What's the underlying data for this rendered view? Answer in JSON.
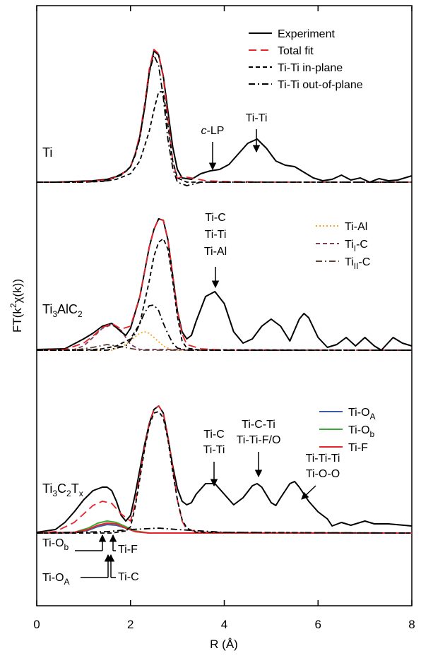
{
  "chart_data": {
    "type": "line",
    "xlabel": "R (Å)",
    "ylabel": [
      "FT(k",
      "2",
      "χ(k))"
    ],
    "xlim": [
      0,
      8
    ],
    "xticks": [
      0,
      2,
      4,
      6,
      8
    ],
    "ylim": [
      0,
      850
    ],
    "panels": [
      {
        "label": "Ti",
        "series": [
          {
            "name": "Experiment",
            "color": "#000000",
            "style": "solid",
            "x": [
              0,
              0.4,
              0.8,
              1.2,
              1.5,
              1.7,
              1.9,
              2.0,
              2.1,
              2.2,
              2.3,
              2.4,
              2.5,
              2.6,
              2.7,
              2.8,
              2.9,
              3.0,
              3.1,
              3.3,
              3.5,
              3.7,
              3.9,
              4.1,
              4.3,
              4.5,
              4.7,
              4.9,
              5.1,
              5.3,
              5.5,
              5.7,
              5.9,
              6.1,
              6.3,
              6.5,
              6.7,
              6.9,
              7.1,
              7.3,
              7.5,
              7.7,
              8.0
            ],
            "values": [
              600,
              600,
              601,
              602,
              604,
              608,
              615,
              622,
              640,
              665,
              705,
              755,
              786,
              780,
              750,
              700,
              650,
              618,
              606,
              604,
              612,
              616,
              618,
              625,
              640,
              655,
              661,
              648,
              630,
              624,
              622,
              614,
              606,
              602,
              604,
              610,
              603,
              606,
              600,
              605,
              602,
              603,
              609
            ]
          },
          {
            "name": "Total fit",
            "color": "#e8242b",
            "style": "longdash",
            "x": [
              0,
              0.5,
              1.0,
              1.5,
              1.8,
              2.0,
              2.1,
              2.2,
              2.3,
              2.4,
              2.5,
              2.6,
              2.7,
              2.8,
              2.9,
              3.0,
              3.1,
              3.3,
              3.6,
              4.0,
              5.0,
              6.0,
              7.0,
              8.0
            ],
            "values": [
              600,
              600,
              601,
              603,
              610,
              622,
              640,
              668,
              710,
              760,
              788,
              782,
              748,
              690,
              630,
              605,
              608,
              606,
              602,
              601,
              600,
              600,
              600,
              600
            ]
          },
          {
            "name": "Ti-Ti in-plane",
            "color": "#000000",
            "style": "dashed",
            "x": [
              0,
              1.0,
              1.4,
              1.7,
              2.0,
              2.2,
              2.4,
              2.5,
              2.6,
              2.7,
              2.8,
              2.9,
              3.0,
              3.2,
              4.0,
              8.0
            ],
            "values": [
              600,
              600,
              601,
              604,
              612,
              630,
              672,
              702,
              728,
              728,
              680,
              630,
              606,
              600,
              600,
              600
            ]
          },
          {
            "name": "Ti-Ti out-of-plane",
            "color": "#000000",
            "style": "dashdot",
            "x": [
              0,
              1.0,
              1.5,
              1.8,
              2.0,
              2.1,
              2.2,
              2.3,
              2.4,
              2.5,
              2.6,
              2.7,
              2.8,
              2.9,
              3.0,
              3.2,
              3.5,
              4.0,
              8.0
            ],
            "values": [
              600,
              600,
              602,
              610,
              622,
              638,
              662,
              705,
              755,
              780,
              765,
              720,
              660,
              620,
              600,
              595,
              600,
              600,
              600
            ]
          }
        ],
        "annotations": [
          [
            [
              "c-LP"
            ]
          ],
          [
            [
              "Ti-Ti"
            ]
          ]
        ]
      },
      {
        "label": [
          "Ti",
          "3",
          "AlC",
          "2"
        ],
        "series": [
          {
            "name": "Ti-Al",
            "color": "#f5a623",
            "style": "dotted",
            "x": [
              0,
              1.6,
              1.9,
              2.1,
              2.2,
              2.3,
              2.4,
              2.5,
              2.7,
              2.9,
              8.0
            ],
            "values": [
              362,
              362,
              370,
              381,
              386,
              388,
              386,
              380,
              368,
              362,
              362
            ]
          },
          {
            "name": [
              "Ti",
              "I",
              "-C"
            ],
            "color": "#7a3f5c",
            "style": "dashed",
            "x": [
              0,
              0.8,
              1.0,
              1.2,
              1.4,
              1.6,
              1.8,
              1.9,
              2.0,
              2.2,
              8.0
            ],
            "values": [
              362,
              363,
              368,
              380,
              393,
              398,
              390,
              380,
              370,
              363,
              362
            ]
          },
          {
            "name": [
              "Ti",
              "II",
              "-C"
            ],
            "color": "#5c4033",
            "style": "dashdot",
            "x": [
              0,
              0.8,
              1.2,
              1.5,
              1.8,
              2.2,
              8.0
            ],
            "values": [
              362,
              362,
              366,
              370,
              367,
              362,
              362
            ]
          },
          {
            "color": "#000000",
            "style": "solid",
            "x": [
              0,
              0.6,
              1.0,
              1.2,
              1.4,
              1.6,
              1.8,
              1.9,
              2.0,
              2.2,
              2.4,
              2.5,
              2.6,
              2.7,
              2.8,
              2.9,
              3.0,
              3.1,
              3.2,
              3.3,
              3.4,
              3.6,
              3.8,
              4.0,
              4.2,
              4.4,
              4.6,
              4.8,
              5.0,
              5.2,
              5.4,
              5.6,
              5.7,
              5.8,
              6.0,
              6.2,
              6.4,
              6.6,
              6.8,
              7.0,
              7.2,
              7.35,
              7.6,
              7.8,
              8.0
            ],
            "values": [
              363,
              364,
              378,
              386,
              396,
              400,
              388,
              383,
              393,
              438,
              508,
              533,
              548,
              546,
              518,
              468,
              418,
              388,
              378,
              383,
              403,
              438,
              445,
              428,
              388,
              372,
              378,
              396,
              406,
              396,
              375,
              406,
              414,
              408,
              380,
              366,
              370,
              380,
              368,
              380,
              368,
              362,
              380,
              372,
              368
            ]
          },
          {
            "color": "#e8242b",
            "style": "longdash",
            "x": [
              0,
              0.6,
              1.0,
              1.2,
              1.4,
              1.6,
              1.8,
              2.0,
              2.2,
              2.4,
              2.5,
              2.6,
              2.7,
              2.8,
              2.9,
              3.0,
              3.1,
              3.2,
              3.5,
              4.0,
              5.0,
              6.0,
              7.0,
              8.0
            ],
            "values": [
              362,
              363,
              372,
              382,
              394,
              400,
              392,
              396,
              438,
              508,
              533,
              548,
              546,
              518,
              468,
              418,
              385,
              370,
              364,
              362,
              362,
              362,
              362,
              362
            ]
          },
          {
            "color": "#000000",
            "style": "dashed",
            "x": [
              0,
              1.0,
              1.4,
              1.7,
              2.0,
              2.2,
              2.4,
              2.5,
              2.6,
              2.7,
              2.8,
              2.9,
              3.0,
              3.1,
              3.2,
              3.5,
              8.0
            ],
            "values": [
              362,
              362,
              364,
              368,
              378,
              400,
              460,
              495,
              515,
              520,
              505,
              460,
              410,
              375,
              365,
              362,
              362
            ]
          },
          {
            "color": "#000000",
            "style": "dashdot",
            "x": [
              0,
              1.5,
              1.9,
              2.1,
              2.3,
              2.4,
              2.5,
              2.6,
              2.7,
              2.8,
              2.9,
              3.0,
              3.2,
              8.0
            ],
            "values": [
              362,
              362,
              368,
              385,
              415,
              425,
              426,
              418,
              400,
              385,
              372,
              365,
              362,
              362
            ]
          }
        ],
        "annotations": [
          [
            [
              "Ti-C"
            ],
            [
              "Ti-Ti"
            ],
            [
              "Ti-Al"
            ]
          ]
        ]
      },
      {
        "label": [
          "Ti",
          "3",
          "C",
          "2",
          "T",
          "x"
        ],
        "series": [
          {
            "name": [
              "Ti-O",
              "A"
            ],
            "color": "#3b5ba9",
            "style": "solid",
            "x": [
              0,
              0.8,
              1.1,
              1.3,
              1.5,
              1.7,
              1.9,
              2.1,
              2.4,
              8.0
            ],
            "values": [
              103,
              103,
              107,
              112,
              115,
              114,
              110,
              105,
              103,
              103
            ]
          },
          {
            "name": [
              "Ti-O",
              "b"
            ],
            "color": "#3aaa35",
            "style": "solid",
            "x": [
              0,
              0.8,
              1.1,
              1.3,
              1.5,
              1.7,
              1.9,
              2.1,
              2.4,
              8.0
            ],
            "values": [
              103,
              104,
              110,
              117,
              120,
              118,
              112,
              106,
              103,
              103
            ]
          },
          {
            "name": "Ti-F",
            "color": "#e8242b",
            "style": "solid",
            "x": [
              0,
              0.8,
              1.1,
              1.3,
              1.5,
              1.7,
              1.9,
              2.1,
              2.4,
              8.0
            ],
            "values": [
              103,
              104,
              108,
              114,
              117,
              116,
              110,
              105,
              103,
              103
            ]
          },
          {
            "color": "#000000",
            "style": "solid",
            "x": [
              0,
              0.4,
              0.6,
              0.8,
              1.0,
              1.2,
              1.4,
              1.5,
              1.6,
              1.7,
              1.8,
              1.9,
              2.0,
              2.1,
              2.2,
              2.3,
              2.4,
              2.5,
              2.6,
              2.7,
              2.8,
              2.9,
              3.0,
              3.1,
              3.2,
              3.3,
              3.4,
              3.6,
              3.8,
              4.0,
              4.2,
              4.4,
              4.6,
              4.7,
              4.8,
              5.0,
              5.1,
              5.2,
              5.4,
              5.5,
              5.6,
              5.8,
              6.0,
              6.2,
              6.3,
              6.5,
              6.7,
              7.0,
              7.2,
              7.5,
              8.0
            ],
            "values": [
              104,
              108,
              118,
              133,
              150,
              163,
              168,
              168,
              163,
              148,
              128,
              120,
              128,
              158,
              193,
              228,
              258,
              278,
              283,
              273,
              238,
              198,
              166,
              148,
              143,
              146,
              158,
              173,
              173,
              158,
              143,
              153,
              170,
              173,
              168,
              146,
              142,
              153,
              173,
              176,
              168,
              148,
              133,
              123,
              113,
              118,
              114,
              120,
              116,
              116,
              113
            ]
          },
          {
            "color": "#e8242b",
            "style": "longdash",
            "x": [
              0,
              0.4,
              0.8,
              1.0,
              1.2,
              1.4,
              1.6,
              1.8,
              2.0,
              2.1,
              2.2,
              2.3,
              2.4,
              2.5,
              2.6,
              2.7,
              2.8,
              2.9,
              3.0,
              3.1,
              3.2,
              3.5,
              4.0,
              8.0
            ],
            "values": [
              103,
              105,
              118,
              130,
              142,
              148,
              145,
              130,
              120,
              145,
              185,
              225,
              258,
              278,
              283,
              273,
              240,
              195,
              150,
              120,
              108,
              104,
              103,
              103
            ]
          },
          {
            "color": "#000000",
            "style": "dashed",
            "x": [
              0,
              1.6,
              1.9,
              2.0,
              2.1,
              2.2,
              2.3,
              2.4,
              2.5,
              2.6,
              2.7,
              2.8,
              2.9,
              3.0,
              3.1,
              3.2,
              3.4,
              8.0
            ],
            "values": [
              103,
              103,
              106,
              112,
              140,
              180,
              222,
              255,
              273,
              275,
              266,
              235,
              190,
              150,
              122,
              110,
              104,
              103
            ]
          },
          {
            "color": "#000000",
            "style": "dashdot",
            "x": [
              0,
              1.5,
              2.0,
              2.6,
              3.0,
              3.5,
              4.0,
              8.0
            ],
            "values": [
              103,
              105,
              108,
              110,
              108,
              106,
              104,
              103
            ]
          }
        ],
        "annotations": [
          [
            [
              "Ti-C"
            ],
            [
              "Ti-Ti"
            ]
          ],
          [
            [
              "Ti-C-Ti"
            ],
            [
              "Ti-Ti-F/O"
            ]
          ],
          [
            [
              "Ti-Ti-Ti"
            ],
            [
              "Ti-O-O"
            ]
          ],
          [
            [
              [
                "Ti-O",
                "b"
              ]
            ]
          ],
          [
            [
              "Ti-F"
            ]
          ],
          [
            [
              [
                "Ti-O",
                "A"
              ]
            ]
          ],
          [
            [
              "Ti-C"
            ]
          ]
        ]
      }
    ]
  }
}
